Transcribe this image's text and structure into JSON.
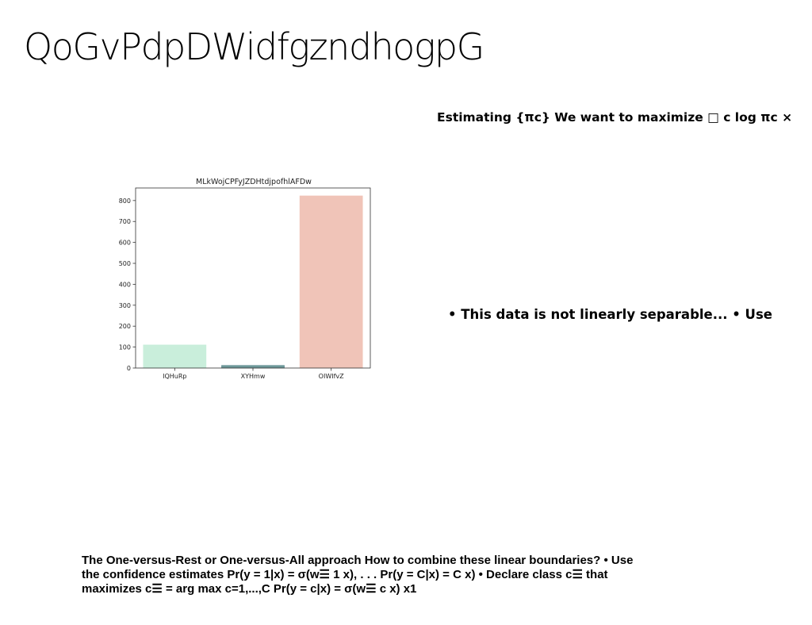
{
  "slide": {
    "title": "QoGvPdpDWidfgzndhogpG",
    "estimating_text": "Estimating {πc} We want to maximize □ c log πc ×",
    "bullet_text": "• This data is not linearly separable... • Use",
    "ovr_text": "The One-versus-Rest or One-versus-All approach How to combine these linear boundaries? • Use the confidence estimates Pr(y = 1|x) = σ(w☰ 1 x), . . . Pr(y = C|x) = C x) • Declare class c☰ that maximizes c☰ = arg max c=1,...,C Pr(y = c|x) = σ(w☰ c x) x1"
  },
  "chart_data": {
    "type": "bar",
    "title": "MLkWojCPFyJZDHtdjpofhlAFDw",
    "categories": [
      "IQHuRp",
      "XYHmw",
      "OIWIfvZ"
    ],
    "values": [
      110,
      12,
      822
    ],
    "colors": [
      "#c9eedb",
      "#6f9a9a",
      "#f0c4b8"
    ],
    "edge_colors": [
      "#c9eedb",
      "#5b8a8e",
      "#f0c4b8"
    ],
    "xlabel": "",
    "ylabel": "",
    "ylim": [
      0,
      860
    ],
    "yticks": [
      0,
      100,
      200,
      300,
      400,
      500,
      600,
      700,
      800
    ],
    "grid": false,
    "legend": "none"
  }
}
